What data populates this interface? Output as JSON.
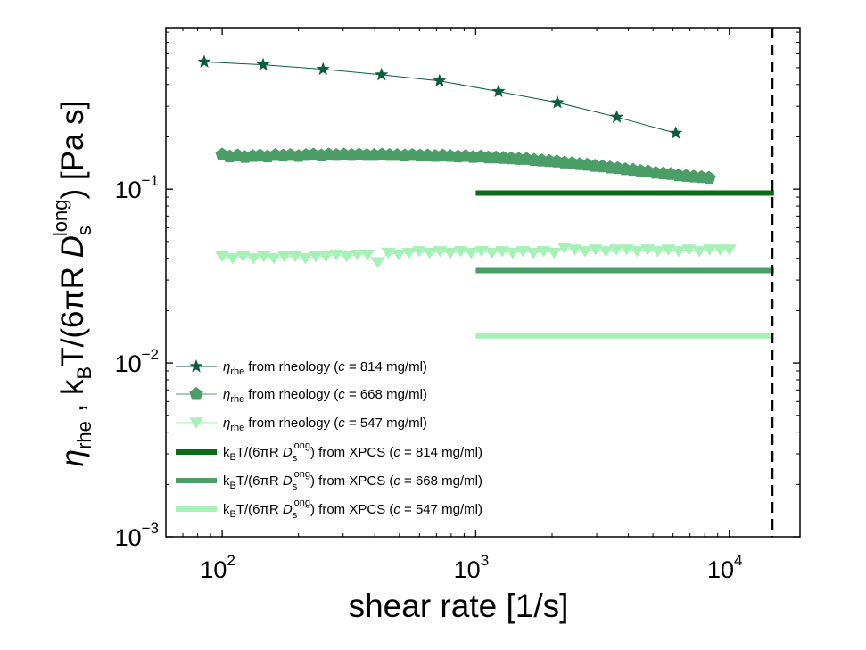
{
  "chart_data": {
    "type": "scatter",
    "xscale": "log",
    "yscale": "log",
    "xlim": [
      60,
      19000
    ],
    "ylim": [
      0.001,
      0.85
    ],
    "xlabel": "shear rate [1/s]",
    "ylabel": {
      "eta": "η",
      "eta_sub": "rhe",
      "sep": " , k",
      "kb_sub": "B",
      "mid": "T/(6πR ",
      "d": "D",
      "d_sub": "s",
      "d_sup": "long",
      "unit": ") [Pa s]"
    },
    "x_ticks": [
      {
        "value": 100,
        "base": "10",
        "exp": "2"
      },
      {
        "value": 1000,
        "base": "10",
        "exp": "3"
      },
      {
        "value": 10000,
        "base": "10",
        "exp": "4"
      }
    ],
    "y_ticks": [
      {
        "value": 0.001,
        "base": "10",
        "exp": "−3"
      },
      {
        "value": 0.01,
        "base": "10",
        "exp": "−2"
      },
      {
        "value": 0.1,
        "base": "10",
        "exp": "−1"
      }
    ],
    "vline": {
      "x": 14800,
      "style": "dashed"
    },
    "series": [
      {
        "id": "rheo-814",
        "kind": "markers",
        "marker": "star",
        "color": "#0b5e3c",
        "connect": true,
        "legend": {
          "eta": "η",
          "sub": "rhe",
          "text": " from rheology (",
          "c": "c",
          "tail": " = 814 mg/ml)"
        },
        "x": [
          85,
          145,
          250,
          425,
          720,
          1230,
          2100,
          3600,
          6150
        ],
        "y": [
          0.54,
          0.52,
          0.49,
          0.455,
          0.42,
          0.365,
          0.315,
          0.26,
          0.21
        ]
      },
      {
        "id": "rheo-668",
        "kind": "markers",
        "marker": "pentagon",
        "color": "#4b9e68",
        "connect": true,
        "legend": {
          "eta": "η",
          "sub": "rhe",
          "text": " from rheology (",
          "c": "c",
          "tail": " = 668 mg/ml)"
        },
        "x": [
          100,
          107,
          115,
          123,
          132,
          141,
          151,
          162,
          174,
          186,
          200,
          214,
          229,
          246,
          263,
          282,
          302,
          324,
          347,
          372,
          398,
          427,
          457,
          490,
          525,
          562,
          603,
          646,
          692,
          741,
          794,
          851,
          912,
          977,
          1047,
          1122,
          1202,
          1288,
          1380,
          1479,
          1585,
          1698,
          1820,
          1950,
          2089,
          2239,
          2399,
          2570,
          2754,
          2951,
          3162,
          3388,
          3631,
          3890,
          4169,
          4467,
          4786,
          5129,
          5495,
          5888,
          6310,
          6761,
          7244,
          7762,
          8318
        ],
        "y": [
          0.158,
          0.154,
          0.156,
          0.153,
          0.155,
          0.156,
          0.154,
          0.157,
          0.156,
          0.157,
          0.155,
          0.157,
          0.158,
          0.156,
          0.158,
          0.157,
          0.158,
          0.157,
          0.158,
          0.157,
          0.157,
          0.158,
          0.157,
          0.157,
          0.156,
          0.157,
          0.156,
          0.156,
          0.155,
          0.156,
          0.155,
          0.154,
          0.155,
          0.153,
          0.154,
          0.152,
          0.152,
          0.151,
          0.15,
          0.149,
          0.149,
          0.147,
          0.146,
          0.145,
          0.144,
          0.142,
          0.141,
          0.139,
          0.138,
          0.136,
          0.135,
          0.133,
          0.132,
          0.13,
          0.129,
          0.127,
          0.126,
          0.124,
          0.123,
          0.122,
          0.12,
          0.119,
          0.118,
          0.117,
          0.116
        ]
      },
      {
        "id": "rheo-547",
        "kind": "markers",
        "marker": "triangle-down",
        "color": "#a6f2b6",
        "connect": true,
        "legend": {
          "eta": "η",
          "sub": "rhe",
          "text": " from rheology (",
          "c": "c",
          "tail": " = 547 mg/ml)"
        },
        "x": [
          100,
          110,
          121,
          133,
          146,
          160,
          176,
          194,
          213,
          234,
          257,
          282,
          310,
          341,
          374,
          411,
          452,
          497,
          545,
          599,
          658,
          723,
          794,
          873,
          959,
          1054,
          1158,
          1272,
          1398,
          1536,
          1688,
          1854,
          2037,
          2239,
          2460,
          2703,
          2970,
          3263,
          3586,
          3940,
          4329,
          4757,
          5227,
          5743,
          6311,
          6934,
          7619,
          8372,
          9199,
          10000
        ],
        "y": [
          0.041,
          0.04,
          0.041,
          0.04,
          0.041,
          0.04,
          0.041,
          0.041,
          0.04,
          0.041,
          0.041,
          0.042,
          0.041,
          0.042,
          0.042,
          0.038,
          0.043,
          0.042,
          0.043,
          0.044,
          0.043,
          0.044,
          0.043,
          0.044,
          0.043,
          0.044,
          0.043,
          0.044,
          0.043,
          0.044,
          0.043,
          0.044,
          0.043,
          0.046,
          0.045,
          0.044,
          0.045,
          0.044,
          0.045,
          0.045,
          0.044,
          0.045,
          0.044,
          0.045,
          0.044,
          0.045,
          0.044,
          0.045,
          0.045,
          0.045
        ]
      },
      {
        "id": "xpcs-814",
        "kind": "hline",
        "color": "#0b6a16",
        "width": 6,
        "legend": {
          "pre": "k",
          "kb_sub": "B",
          "mid": "T/(6πR ",
          "d": "D",
          "d_sub": "s",
          "d_sup": "long",
          "text": ")  from XPCS (",
          "c": "c",
          "tail": " = 814 mg/ml)"
        },
        "x": [
          1000,
          15000
        ],
        "y": 0.095
      },
      {
        "id": "xpcs-668",
        "kind": "hline",
        "color": "#4b9e68",
        "width": 6,
        "legend": {
          "pre": "k",
          "kb_sub": "B",
          "mid": "T/(6πR ",
          "d": "D",
          "d_sub": "s",
          "d_sup": "long",
          "text": ")  from XPCS (",
          "c": "c",
          "tail": " = 668 mg/ml)"
        },
        "x": [
          1000,
          15000
        ],
        "y": 0.034
      },
      {
        "id": "xpcs-547",
        "kind": "hline",
        "color": "#a6f2b6",
        "width": 6,
        "legend": {
          "pre": "k",
          "kb_sub": "B",
          "mid": "T/(6πR ",
          "d": "D",
          "d_sub": "s",
          "d_sup": "long",
          "text": ")  from XPCS (",
          "c": "c",
          "tail": " = 547 mg/ml)"
        },
        "x": [
          1000,
          15000
        ],
        "y": 0.0143
      }
    ],
    "legend_position": "bottom-left"
  }
}
